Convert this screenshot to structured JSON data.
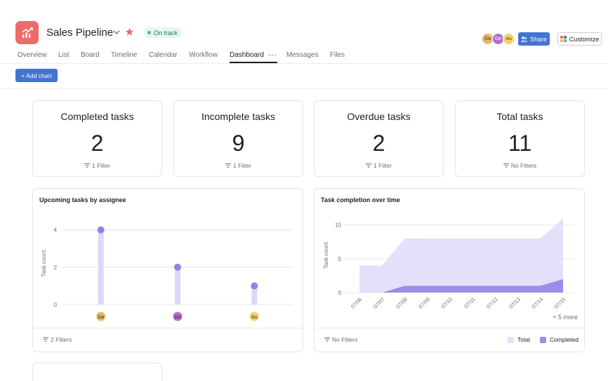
{
  "project": {
    "title": "Sales Pipeline",
    "status": "On track",
    "icon": "chart-line-icon",
    "color": "#f06a6a"
  },
  "header": {
    "members": [
      {
        "initials": "Da",
        "color": "#e8b86a"
      },
      {
        "initials": "Ge",
        "color": "#b36bd4"
      },
      {
        "initials": "Au",
        "color": "#f0d46a"
      }
    ],
    "share_label": "Share",
    "customize_label": "Customize"
  },
  "tabs": [
    {
      "label": "Overview",
      "active": false
    },
    {
      "label": "List",
      "active": false
    },
    {
      "label": "Board",
      "active": false
    },
    {
      "label": "Timeline",
      "active": false
    },
    {
      "label": "Calendar",
      "active": false
    },
    {
      "label": "Workflow",
      "active": false
    },
    {
      "label": "Dashboard",
      "active": true
    },
    {
      "label": "Messages",
      "active": false
    },
    {
      "label": "Files",
      "active": false
    }
  ],
  "toolbar": {
    "add_chart_label": "+ Add chart"
  },
  "stats": [
    {
      "title": "Completed tasks",
      "value": "2",
      "filter": "1 Filter"
    },
    {
      "title": "Incomplete tasks",
      "value": "9",
      "filter": "1 Filter"
    },
    {
      "title": "Overdue tasks",
      "value": "2",
      "filter": "1 Filter"
    },
    {
      "title": "Total tasks",
      "value": "11",
      "filter": "No Filters"
    }
  ],
  "charts": {
    "assignee": {
      "title": "Upcoming tasks by assignee",
      "filter": "2 Filters"
    },
    "completion": {
      "title": "Task completion over time",
      "filter": "No Filters",
      "more": "+ 5 more",
      "legend": [
        {
          "label": "Total",
          "color": "#e3e0fa"
        },
        {
          "label": "Completed",
          "color": "#9b8de8"
        }
      ]
    }
  },
  "chart_data": [
    {
      "type": "bar",
      "title": "Upcoming tasks by assignee",
      "xlabel": "",
      "ylabel": "Task count",
      "categories": [
        "Da",
        "Ge",
        "Au"
      ],
      "category_colors": [
        "#e8b86a",
        "#b36bd4",
        "#f0d46a"
      ],
      "values": [
        4,
        2,
        1
      ],
      "yticks": [
        0,
        2,
        4
      ],
      "ylim": [
        0,
        4.4
      ],
      "bar_color": "#dcd8f7",
      "point_color": "#8f84e6",
      "grid": true
    },
    {
      "type": "area",
      "title": "Task completion over time",
      "xlabel": "",
      "ylabel": "Task count",
      "x": [
        "07/06",
        "07/07",
        "07/08",
        "07/09",
        "07/10",
        "07/11",
        "07/12",
        "07/13",
        "07/14",
        "07/15"
      ],
      "series": [
        {
          "name": "Total",
          "values": [
            4,
            4,
            8,
            8,
            8,
            8,
            8,
            8,
            8,
            11
          ],
          "color": "#e3e0fa"
        },
        {
          "name": "Completed",
          "values": [
            0,
            0,
            1,
            1,
            1,
            1,
            1,
            1,
            1,
            2
          ],
          "color": "#9b8de8"
        }
      ],
      "yticks": [
        0,
        5,
        10
      ],
      "ylim": [
        0,
        11
      ],
      "legend": "bottom-right",
      "grid": true
    }
  ]
}
